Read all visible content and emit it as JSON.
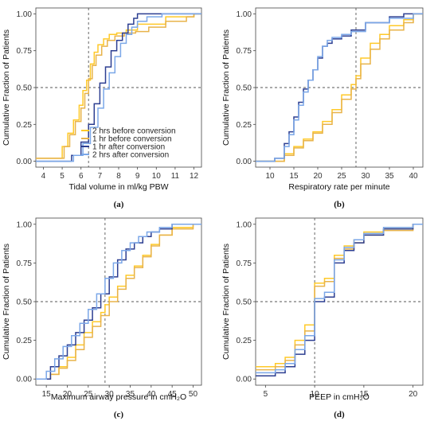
{
  "series_styles": [
    {
      "name": "2 hrs before conversion",
      "color": "#FFC928"
    },
    {
      "name": "1 hr before conversion",
      "color": "#E8B34A"
    },
    {
      "name": "1 hr after conversion",
      "color": "#2C3E91"
    },
    {
      "name": "2 hrs after conversion",
      "color": "#7BA7E8"
    }
  ],
  "chart_data": [
    {
      "id": "a",
      "panel_label": "(a)",
      "type": "line",
      "step": true,
      "xlabel": "Tidal volume in ml/kg PBW",
      "ylabel": "Cumulative Fraction of Patients",
      "xlim": [
        3.6,
        12.4
      ],
      "ylim": [
        -0.04,
        1.04
      ],
      "xticks": [
        "4",
        "5",
        "6",
        "7",
        "8",
        "9",
        "10",
        "11",
        "12"
      ],
      "yticks": [
        "0.00",
        "0.25",
        "0.50",
        "0.75",
        "1.00"
      ],
      "vline": 6.4,
      "hline": 0.5,
      "legend": "center-right",
      "series": [
        {
          "name": "2 hrs before conversion",
          "x": [
            4.0,
            5.0,
            5.3,
            5.6,
            5.9,
            6.1,
            6.3,
            6.5,
            6.7,
            6.9,
            7.2,
            7.5,
            7.9,
            8.4,
            9.0,
            10.5,
            12.0
          ],
          "y": [
            0.02,
            0.1,
            0.19,
            0.28,
            0.38,
            0.48,
            0.55,
            0.66,
            0.74,
            0.79,
            0.83,
            0.86,
            0.87,
            0.89,
            0.93,
            0.98,
            1.0
          ]
        },
        {
          "name": "1 hr before conversion",
          "x": [
            4.0,
            5.1,
            5.4,
            5.7,
            6.0,
            6.2,
            6.4,
            6.6,
            6.8,
            7.1,
            7.4,
            7.8,
            8.3,
            8.9,
            9.6,
            10.5,
            11.6,
            12.0
          ],
          "y": [
            0.02,
            0.1,
            0.18,
            0.27,
            0.36,
            0.46,
            0.56,
            0.65,
            0.72,
            0.78,
            0.82,
            0.85,
            0.87,
            0.88,
            0.91,
            0.95,
            0.98,
            1.0
          ]
        },
        {
          "name": "1 hr after conversion",
          "x": [
            4.0,
            5.5,
            6.0,
            6.4,
            6.7,
            7.0,
            7.3,
            7.6,
            7.9,
            8.2,
            8.5,
            8.8,
            9.0,
            9.3,
            12.0
          ],
          "y": [
            0.0,
            0.04,
            0.13,
            0.25,
            0.39,
            0.53,
            0.64,
            0.75,
            0.82,
            0.87,
            0.93,
            0.97,
            1.0,
            1.0,
            1.0
          ]
        },
        {
          "name": "2 hrs after conversion",
          "x": [
            4.0,
            5.6,
            6.1,
            6.5,
            6.9,
            7.2,
            7.5,
            7.8,
            8.1,
            8.4,
            8.7,
            9.0,
            9.5,
            10.3,
            12.0
          ],
          "y": [
            0.0,
            0.04,
            0.12,
            0.23,
            0.36,
            0.49,
            0.6,
            0.71,
            0.8,
            0.86,
            0.91,
            0.95,
            0.98,
            1.0,
            1.0
          ]
        }
      ]
    },
    {
      "id": "b",
      "panel_label": "(b)",
      "type": "line",
      "step": true,
      "xlabel": "Respiratory rate per minute",
      "ylabel": "Cumulative Fraction of Patients",
      "xlim": [
        7,
        42
      ],
      "ylim": [
        -0.04,
        1.04
      ],
      "xticks": [
        "10",
        "15",
        "20",
        "25",
        "30",
        "35",
        "40"
      ],
      "yticks": [
        "0.00",
        "0.25",
        "0.50",
        "0.75",
        "1.00"
      ],
      "vline": 28,
      "hline": 0.5,
      "legend": "none",
      "series": [
        {
          "name": "2 hrs before conversion",
          "x": [
            8,
            13,
            15,
            17,
            19,
            21,
            23,
            25,
            27,
            28,
            29,
            31,
            33,
            35,
            38,
            40
          ],
          "y": [
            0.0,
            0.05,
            0.1,
            0.15,
            0.2,
            0.27,
            0.35,
            0.45,
            0.52,
            0.58,
            0.7,
            0.8,
            0.86,
            0.92,
            0.96,
            1.0
          ]
        },
        {
          "name": "1 hr before conversion",
          "x": [
            8,
            13,
            15,
            17,
            19,
            21,
            23,
            25,
            27,
            28,
            29,
            31,
            33,
            35,
            38,
            40
          ],
          "y": [
            0.0,
            0.04,
            0.09,
            0.14,
            0.19,
            0.25,
            0.33,
            0.42,
            0.49,
            0.56,
            0.66,
            0.76,
            0.83,
            0.89,
            0.94,
            1.0
          ]
        },
        {
          "name": "1 hr after conversion",
          "x": [
            8,
            11,
            13,
            14,
            15,
            16,
            17,
            18,
            19,
            20,
            21,
            22,
            23,
            25,
            27,
            30,
            35,
            38
          ],
          "y": [
            0.0,
            0.02,
            0.12,
            0.2,
            0.3,
            0.4,
            0.49,
            0.55,
            0.62,
            0.7,
            0.78,
            0.8,
            0.83,
            0.85,
            0.89,
            0.94,
            0.98,
            1.0
          ]
        },
        {
          "name": "2 hrs after conversion",
          "x": [
            8,
            11,
            13,
            14,
            15,
            16,
            17,
            18,
            19,
            20,
            21,
            22,
            23,
            25,
            27,
            30,
            35,
            40
          ],
          "y": [
            0.0,
            0.02,
            0.1,
            0.18,
            0.28,
            0.38,
            0.47,
            0.55,
            0.62,
            0.71,
            0.78,
            0.82,
            0.84,
            0.86,
            0.88,
            0.94,
            0.97,
            1.0
          ]
        }
      ]
    },
    {
      "id": "c",
      "panel_label": "(c)",
      "type": "line",
      "step": true,
      "xlabel": "Maximum airway pressure in cmH₂O",
      "ylabel": "Cumulative Fraction of Patients",
      "xlim": [
        12.5,
        52
      ],
      "ylim": [
        -0.04,
        1.04
      ],
      "xticks": [
        "15",
        "20",
        "25",
        "30",
        "35",
        "40",
        "45",
        "50"
      ],
      "yticks": [
        "0.00",
        "0.25",
        "0.50",
        "0.75",
        "1.00"
      ],
      "vline": 29,
      "hline": 0.5,
      "legend": "none",
      "series": [
        {
          "name": "2 hrs before conversion",
          "x": [
            14,
            16,
            18,
            20,
            22,
            24,
            26,
            28,
            29,
            30,
            32,
            34,
            36,
            38,
            40,
            42,
            45,
            50
          ],
          "y": [
            0.0,
            0.03,
            0.08,
            0.14,
            0.22,
            0.3,
            0.37,
            0.43,
            0.48,
            0.53,
            0.6,
            0.67,
            0.73,
            0.8,
            0.87,
            0.93,
            0.98,
            1.0
          ]
        },
        {
          "name": "1 hr before conversion",
          "x": [
            14,
            16,
            18,
            20,
            22,
            24,
            26,
            28,
            30,
            32,
            34,
            36,
            38,
            40,
            42,
            45,
            50
          ],
          "y": [
            0.0,
            0.03,
            0.07,
            0.12,
            0.19,
            0.27,
            0.34,
            0.41,
            0.5,
            0.58,
            0.65,
            0.72,
            0.79,
            0.86,
            0.93,
            0.97,
            1.0
          ]
        },
        {
          "name": "1 hr after conversion",
          "x": [
            14,
            16,
            18,
            20,
            22,
            24,
            26,
            28,
            30,
            32,
            34,
            36,
            38,
            40,
            42,
            45
          ],
          "y": [
            0.0,
            0.08,
            0.15,
            0.22,
            0.3,
            0.38,
            0.46,
            0.55,
            0.66,
            0.77,
            0.84,
            0.88,
            0.92,
            0.95,
            0.97,
            1.0
          ]
        },
        {
          "name": "2 hrs after conversion",
          "x": [
            14,
            15,
            17,
            19,
            21,
            23,
            25,
            27,
            29,
            31,
            33,
            35,
            37,
            39,
            42,
            45
          ],
          "y": [
            0.0,
            0.05,
            0.13,
            0.21,
            0.28,
            0.36,
            0.45,
            0.55,
            0.65,
            0.75,
            0.83,
            0.88,
            0.92,
            0.95,
            0.98,
            1.0
          ]
        }
      ]
    },
    {
      "id": "d",
      "panel_label": "(d)",
      "type": "line",
      "step": true,
      "xlabel": "PEEP in cmH₂O",
      "ylabel": "Cumulative Fraction of Patients",
      "xlim": [
        4.0,
        21.0
      ],
      "ylim": [
        -0.04,
        1.04
      ],
      "xticks": [
        "5",
        "10",
        "15",
        "20"
      ],
      "yticks": [
        "0.00",
        "0.25",
        "0.50",
        "0.75",
        "1.00"
      ],
      "vline": 10,
      "hline": 0.5,
      "legend": "none",
      "series": [
        {
          "name": "2 hrs before conversion",
          "x": [
            5,
            6,
            7,
            8,
            9,
            10,
            11,
            12,
            13,
            14,
            15,
            17,
            20
          ],
          "y": [
            0.08,
            0.1,
            0.14,
            0.25,
            0.35,
            0.62,
            0.65,
            0.8,
            0.86,
            0.9,
            0.95,
            0.97,
            1.0
          ]
        },
        {
          "name": "1 hr before conversion",
          "x": [
            5,
            6,
            7,
            8,
            9,
            10,
            11,
            12,
            13,
            14,
            15,
            17,
            20
          ],
          "y": [
            0.06,
            0.08,
            0.12,
            0.22,
            0.31,
            0.6,
            0.63,
            0.78,
            0.84,
            0.88,
            0.93,
            0.96,
            1.0
          ]
        },
        {
          "name": "1 hr after conversion",
          "x": [
            5,
            6,
            7,
            8,
            9,
            10,
            11,
            12,
            13,
            14,
            15,
            17,
            20
          ],
          "y": [
            0.02,
            0.04,
            0.08,
            0.16,
            0.25,
            0.5,
            0.53,
            0.75,
            0.83,
            0.88,
            0.93,
            0.97,
            1.0
          ]
        },
        {
          "name": "2 hrs after conversion",
          "x": [
            5,
            6,
            7,
            8,
            9,
            10,
            11,
            12,
            13,
            14,
            15,
            17,
            20
          ],
          "y": [
            0.04,
            0.06,
            0.1,
            0.19,
            0.28,
            0.52,
            0.56,
            0.77,
            0.85,
            0.9,
            0.94,
            0.98,
            1.0
          ]
        }
      ]
    }
  ]
}
